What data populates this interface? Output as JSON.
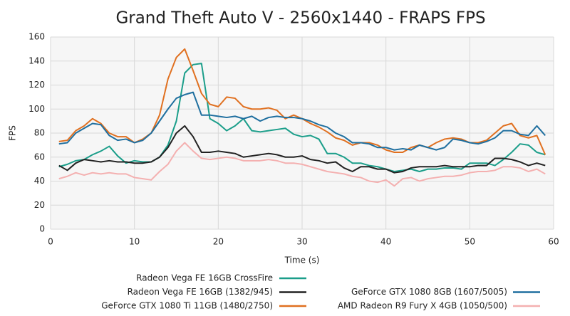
{
  "chart_data": {
    "type": "line",
    "title": "Grand Theft Auto V - 2560x1440 - FRAPS FPS",
    "x_label": "Time (s)",
    "y_label": "FPS",
    "x": [
      1,
      2,
      3,
      4,
      5,
      6,
      7,
      8,
      9,
      10,
      11,
      12,
      13,
      14,
      15,
      16,
      17,
      18,
      19,
      20,
      21,
      22,
      23,
      24,
      25,
      26,
      27,
      28,
      29,
      30,
      31,
      32,
      33,
      34,
      35,
      36,
      37,
      38,
      39,
      40,
      41,
      42,
      43,
      44,
      45,
      46,
      47,
      48,
      49,
      50,
      51,
      52,
      53,
      54,
      55,
      56,
      57,
      58,
      59
    ],
    "xlim": [
      0,
      60
    ],
    "xticks": [
      0,
      10,
      20,
      30,
      40,
      50,
      60
    ],
    "ylim": [
      0,
      160
    ],
    "yticks": [
      0,
      20,
      40,
      60,
      80,
      100,
      120,
      140,
      160
    ],
    "grid": true,
    "series": [
      {
        "name": "Radeon Vega FE 16GB CrossFire",
        "color": "#1b9e8a",
        "values": [
          52,
          54,
          57,
          58,
          62,
          65,
          69,
          61,
          55,
          57,
          56,
          56,
          60,
          70,
          90,
          130,
          137,
          138,
          92,
          88,
          82,
          86,
          92,
          82,
          81,
          82,
          83,
          84,
          79,
          77,
          78,
          75,
          63,
          63,
          60,
          55,
          55,
          53,
          52,
          50,
          48,
          49,
          50,
          48,
          50,
          50,
          51,
          51,
          50,
          55,
          55,
          55,
          53,
          58,
          64,
          71,
          70,
          64,
          62
        ]
      },
      {
        "name": "Radeon Vega FE 16GB (1382/945)",
        "color": "#222222",
        "values": [
          53,
          49,
          55,
          58,
          57,
          56,
          57,
          56,
          56,
          55,
          55,
          56,
          60,
          68,
          80,
          86,
          77,
          64,
          64,
          65,
          64,
          63,
          60,
          61,
          62,
          63,
          62,
          60,
          60,
          61,
          58,
          57,
          55,
          56,
          51,
          48,
          52,
          52,
          50,
          50,
          47,
          48,
          51,
          52,
          52,
          52,
          53,
          52,
          52,
          52,
          53,
          53,
          59,
          59,
          58,
          56,
          53,
          55,
          53
        ]
      },
      {
        "name": "GeForce GTX 1080 Ti 11GB (1480/2750)",
        "color": "#e07020",
        "values": [
          73,
          74,
          82,
          86,
          92,
          88,
          80,
          77,
          77,
          72,
          75,
          80,
          95,
          125,
          143,
          150,
          132,
          113,
          104,
          102,
          110,
          109,
          102,
          100,
          100,
          101,
          99,
          92,
          95,
          92,
          88,
          85,
          81,
          76,
          74,
          70,
          72,
          72,
          70,
          66,
          64,
          64,
          68,
          70,
          68,
          72,
          75,
          76,
          75,
          72,
          72,
          74,
          80,
          86,
          88,
          78,
          76,
          78,
          62
        ]
      },
      {
        "name": "GeForce GTX 1080 8GB (1607/5005)",
        "color": "#1f6f9f",
        "values": [
          71,
          72,
          80,
          84,
          88,
          87,
          78,
          74,
          75,
          72,
          74,
          80,
          90,
          100,
          109,
          112,
          114,
          95,
          95,
          94,
          93,
          94,
          92,
          94,
          90,
          93,
          94,
          93,
          93,
          92,
          90,
          87,
          85,
          80,
          77,
          72,
          72,
          71,
          68,
          68,
          66,
          67,
          66,
          70,
          68,
          66,
          68,
          75,
          74,
          72,
          71,
          73,
          76,
          82,
          82,
          79,
          78,
          86,
          78
        ]
      },
      {
        "name": "AMD Radeon R9 Fury X 4GB (1050/500)",
        "color": "#f4b0b0",
        "values": [
          42,
          44,
          47,
          45,
          47,
          46,
          47,
          46,
          46,
          43,
          42,
          41,
          48,
          54,
          65,
          72,
          65,
          59,
          58,
          59,
          60,
          59,
          57,
          57,
          57,
          58,
          57,
          55,
          55,
          54,
          52,
          50,
          48,
          47,
          46,
          44,
          43,
          40,
          39,
          41,
          36,
          42,
          43,
          40,
          42,
          43,
          44,
          44,
          45,
          47,
          48,
          48,
          49,
          52,
          52,
          51,
          48,
          50,
          46
        ]
      }
    ]
  }
}
